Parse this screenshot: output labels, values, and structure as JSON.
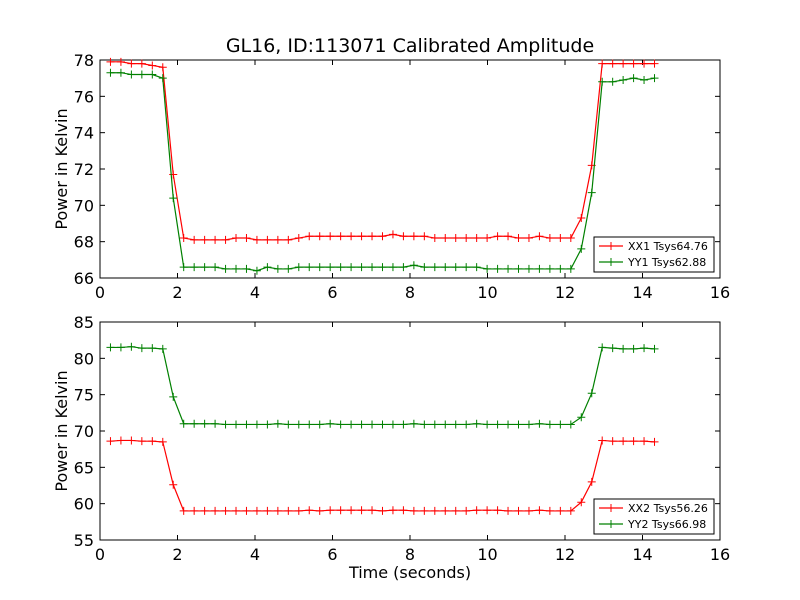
{
  "chart_data": [
    {
      "type": "line",
      "title": "GL16, ID:113071 Calibrated Amplitude",
      "xlabel": "",
      "ylabel": "Power in Kelvin",
      "xlim": [
        0,
        16
      ],
      "ylim": [
        66,
        78
      ],
      "xticks": [
        "0",
        "2",
        "4",
        "6",
        "8",
        "10",
        "12",
        "14",
        "16"
      ],
      "yticks": [
        "66",
        "68",
        "70",
        "72",
        "74",
        "76",
        "78"
      ],
      "legend_position": "lower-right",
      "series": [
        {
          "name": "XX1 Tsys64.76",
          "color": "#ff0000",
          "x": [
            0.27,
            0.54,
            0.81,
            1.08,
            1.35,
            1.62,
            1.89,
            2.16,
            2.43,
            2.7,
            2.97,
            3.24,
            3.51,
            3.78,
            4.05,
            4.32,
            4.59,
            4.86,
            5.13,
            5.4,
            5.67,
            5.94,
            6.21,
            6.48,
            6.75,
            7.02,
            7.29,
            7.56,
            7.83,
            8.1,
            8.37,
            8.64,
            8.91,
            9.18,
            9.45,
            9.72,
            9.99,
            10.26,
            10.53,
            10.8,
            11.07,
            11.34,
            11.61,
            11.88,
            12.15,
            12.42,
            12.69,
            12.96,
            13.23,
            13.5,
            13.77,
            14.04,
            14.31
          ],
          "y": [
            77.9,
            77.9,
            77.8,
            77.8,
            77.7,
            77.6,
            71.7,
            68.2,
            68.1,
            68.1,
            68.1,
            68.1,
            68.2,
            68.2,
            68.1,
            68.1,
            68.1,
            68.1,
            68.2,
            68.3,
            68.3,
            68.3,
            68.3,
            68.3,
            68.3,
            68.3,
            68.3,
            68.4,
            68.3,
            68.3,
            68.3,
            68.2,
            68.2,
            68.2,
            68.2,
            68.2,
            68.2,
            68.3,
            68.3,
            68.2,
            68.2,
            68.3,
            68.2,
            68.2,
            68.2,
            69.3,
            72.2,
            77.8,
            77.8,
            77.8,
            77.8,
            77.8,
            77.8
          ]
        },
        {
          "name": "YY1 Tsys62.88",
          "color": "#008000",
          "x": [
            0.27,
            0.54,
            0.81,
            1.08,
            1.35,
            1.62,
            1.89,
            2.16,
            2.43,
            2.7,
            2.97,
            3.24,
            3.51,
            3.78,
            4.05,
            4.32,
            4.59,
            4.86,
            5.13,
            5.4,
            5.67,
            5.94,
            6.21,
            6.48,
            6.75,
            7.02,
            7.29,
            7.56,
            7.83,
            8.1,
            8.37,
            8.64,
            8.91,
            9.18,
            9.45,
            9.72,
            9.99,
            10.26,
            10.53,
            10.8,
            11.07,
            11.34,
            11.61,
            11.88,
            12.15,
            12.42,
            12.69,
            12.96,
            13.23,
            13.5,
            13.77,
            14.04,
            14.31
          ],
          "y": [
            77.3,
            77.3,
            77.2,
            77.2,
            77.2,
            77.0,
            70.4,
            66.6,
            66.6,
            66.6,
            66.6,
            66.5,
            66.5,
            66.5,
            66.4,
            66.6,
            66.5,
            66.5,
            66.6,
            66.6,
            66.6,
            66.6,
            66.6,
            66.6,
            66.6,
            66.6,
            66.6,
            66.6,
            66.6,
            66.7,
            66.6,
            66.6,
            66.6,
            66.6,
            66.6,
            66.6,
            66.5,
            66.5,
            66.5,
            66.5,
            66.5,
            66.5,
            66.5,
            66.5,
            66.5,
            67.6,
            70.7,
            76.8,
            76.8,
            76.9,
            77.0,
            76.9,
            77.0
          ]
        }
      ]
    },
    {
      "type": "line",
      "title": "",
      "xlabel": "Time (seconds)",
      "ylabel": "Power in Kelvin",
      "xlim": [
        0,
        16
      ],
      "ylim": [
        55,
        85
      ],
      "xticks": [
        "0",
        "2",
        "4",
        "6",
        "8",
        "10",
        "12",
        "14",
        "16"
      ],
      "yticks": [
        "55",
        "60",
        "65",
        "70",
        "75",
        "80",
        "85"
      ],
      "legend_position": "lower-right",
      "series": [
        {
          "name": "XX2 Tsys56.26",
          "color": "#ff0000",
          "x": [
            0.27,
            0.54,
            0.81,
            1.08,
            1.35,
            1.62,
            1.89,
            2.16,
            2.43,
            2.7,
            2.97,
            3.24,
            3.51,
            3.78,
            4.05,
            4.32,
            4.59,
            4.86,
            5.13,
            5.4,
            5.67,
            5.94,
            6.21,
            6.48,
            6.75,
            7.02,
            7.29,
            7.56,
            7.83,
            8.1,
            8.37,
            8.64,
            8.91,
            9.18,
            9.45,
            9.72,
            9.99,
            10.26,
            10.53,
            10.8,
            11.07,
            11.34,
            11.61,
            11.88,
            12.15,
            12.42,
            12.69,
            12.96,
            13.23,
            13.5,
            13.77,
            14.04,
            14.31
          ],
          "y": [
            68.6,
            68.7,
            68.7,
            68.6,
            68.6,
            68.5,
            62.6,
            59.0,
            59.0,
            59.0,
            59.0,
            59.0,
            59.0,
            59.0,
            59.0,
            59.0,
            59.0,
            59.0,
            59.0,
            59.1,
            59.0,
            59.1,
            59.1,
            59.1,
            59.1,
            59.1,
            59.0,
            59.1,
            59.1,
            59.0,
            59.0,
            59.0,
            59.0,
            59.0,
            59.0,
            59.1,
            59.1,
            59.1,
            59.0,
            59.0,
            59.0,
            59.1,
            59.0,
            59.0,
            59.0,
            60.2,
            63.0,
            68.7,
            68.6,
            68.6,
            68.6,
            68.6,
            68.5
          ]
        },
        {
          "name": "YY2 Tsys66.98",
          "color": "#008000",
          "x": [
            0.27,
            0.54,
            0.81,
            1.08,
            1.35,
            1.62,
            1.89,
            2.16,
            2.43,
            2.7,
            2.97,
            3.24,
            3.51,
            3.78,
            4.05,
            4.32,
            4.59,
            4.86,
            5.13,
            5.4,
            5.67,
            5.94,
            6.21,
            6.48,
            6.75,
            7.02,
            7.29,
            7.56,
            7.83,
            8.1,
            8.37,
            8.64,
            8.91,
            9.18,
            9.45,
            9.72,
            9.99,
            10.26,
            10.53,
            10.8,
            11.07,
            11.34,
            11.61,
            11.88,
            12.15,
            12.42,
            12.69,
            12.96,
            13.23,
            13.5,
            13.77,
            14.04,
            14.31
          ],
          "y": [
            81.5,
            81.5,
            81.6,
            81.4,
            81.4,
            81.3,
            74.7,
            71.0,
            71.0,
            71.0,
            71.0,
            70.9,
            70.9,
            70.9,
            70.9,
            70.9,
            71.0,
            70.9,
            70.9,
            70.9,
            70.9,
            71.0,
            70.9,
            70.9,
            70.9,
            70.9,
            70.9,
            70.9,
            70.9,
            71.0,
            70.9,
            70.9,
            70.9,
            70.9,
            70.9,
            71.0,
            70.9,
            70.9,
            70.9,
            70.9,
            70.9,
            71.0,
            70.9,
            70.9,
            70.9,
            71.9,
            75.2,
            81.5,
            81.4,
            81.3,
            81.3,
            81.4,
            81.3
          ]
        }
      ]
    }
  ]
}
